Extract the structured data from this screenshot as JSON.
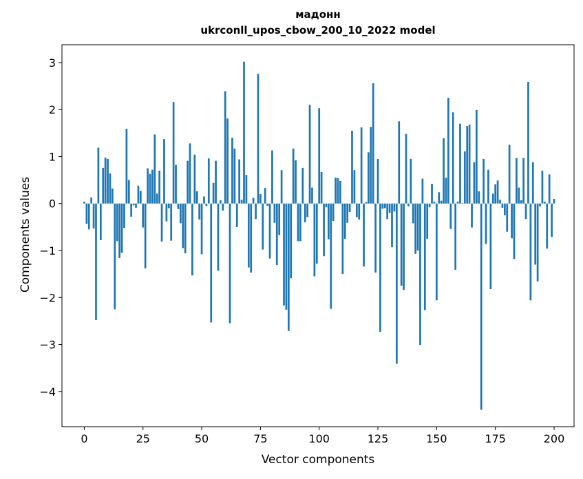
{
  "chart_data": {
    "type": "bar",
    "title_lines": [
      "мадонн",
      "ukrconll_upos_cbow_200_10_2022 model"
    ],
    "xlabel": "Vector components",
    "ylabel": "Components values",
    "xlim": [
      -9.5,
      208.5
    ],
    "ylim": [
      -4.75,
      3.38
    ],
    "xticks": [
      0,
      25,
      50,
      75,
      100,
      125,
      150,
      175,
      200
    ],
    "yticks": [
      -4,
      -3,
      -2,
      -1,
      0,
      1,
      2,
      3
    ],
    "ytick_labels": [
      "−4",
      "−3",
      "−2",
      "−1",
      "0",
      "1",
      "2",
      "3"
    ],
    "grid": false,
    "legend": "none",
    "bar_color": "#1f77b4",
    "values": [
      0.04,
      -0.43,
      -0.55,
      0.13,
      -0.53,
      -2.48,
      1.19,
      -0.78,
      0.76,
      0.98,
      0.95,
      0.64,
      0.32,
      -2.25,
      -0.8,
      -1.16,
      -1.05,
      -0.52,
      1.59,
      0.5,
      -0.28,
      -0.04,
      -0.09,
      0.38,
      0.27,
      -0.51,
      -1.38,
      0.75,
      0.63,
      0.72,
      1.47,
      0.21,
      0.7,
      -0.81,
      1.37,
      -0.38,
      -0.1,
      -0.79,
      2.16,
      0.82,
      -0.12,
      -0.42,
      -0.95,
      -1.06,
      0.91,
      1.28,
      -1.53,
      1.04,
      0.26,
      -0.34,
      -1.08,
      0.15,
      -0.05,
      0.96,
      -2.53,
      0.44,
      0.91,
      -1.43,
      0.07,
      -0.15,
      2.39,
      1.81,
      -2.55,
      1.4,
      1.17,
      -0.5,
      0.94,
      0.08,
      3.02,
      0.61,
      -1.36,
      -1.47,
      0.12,
      -0.33,
      2.76,
      0.2,
      -0.98,
      0.33,
      -0.05,
      -1.17,
      1.13,
      -0.41,
      -1.31,
      -0.67,
      0.71,
      -2.17,
      -2.26,
      -2.71,
      -1.59,
      1.17,
      0.92,
      -0.8,
      -0.8,
      0.76,
      -0.4,
      -0.29,
      2.1,
      0.34,
      -1.55,
      -1.28,
      2.03,
      0.67,
      -1.12,
      -0.08,
      -0.76,
      -2.24,
      -0.37,
      0.55,
      0.54,
      0.48,
      -1.5,
      -0.75,
      -0.41,
      -0.18,
      1.55,
      0.71,
      -0.29,
      -0.34,
      1.62,
      -1.34,
      0.03,
      1.09,
      1.63,
      2.56,
      -1.47,
      0.95,
      -2.73,
      -0.11,
      -0.1,
      -0.33,
      -0.2,
      -0.93,
      -0.17,
      -3.41,
      1.75,
      -1.75,
      -1.84,
      1.48,
      -0.06,
      0.95,
      -0.42,
      -1.07,
      -1.0,
      -3.01,
      0.53,
      -2.27,
      -0.75,
      -0.08,
      0.42,
      0.04,
      -2.06,
      0.24,
      0.06,
      1.39,
      0.55,
      2.25,
      -0.54,
      1.94,
      -1.41,
      0.04,
      1.7,
      0.01,
      1.11,
      1.65,
      1.68,
      -0.51,
      0.88,
      1.99,
      0.26,
      -4.39,
      0.95,
      -0.86,
      0.72,
      -1.82,
      0.21,
      0.41,
      0.49,
      0.08,
      -0.09,
      -0.25,
      -0.6,
      1.25,
      -0.74,
      -1.18,
      0.97,
      0.34,
      0.07,
      0.97,
      -0.33,
      2.59,
      -2.06,
      0.88,
      -1.3,
      -1.66,
      -0.06,
      0.7,
      0.04,
      -0.96,
      0.62,
      -0.71,
      0.1
    ]
  }
}
